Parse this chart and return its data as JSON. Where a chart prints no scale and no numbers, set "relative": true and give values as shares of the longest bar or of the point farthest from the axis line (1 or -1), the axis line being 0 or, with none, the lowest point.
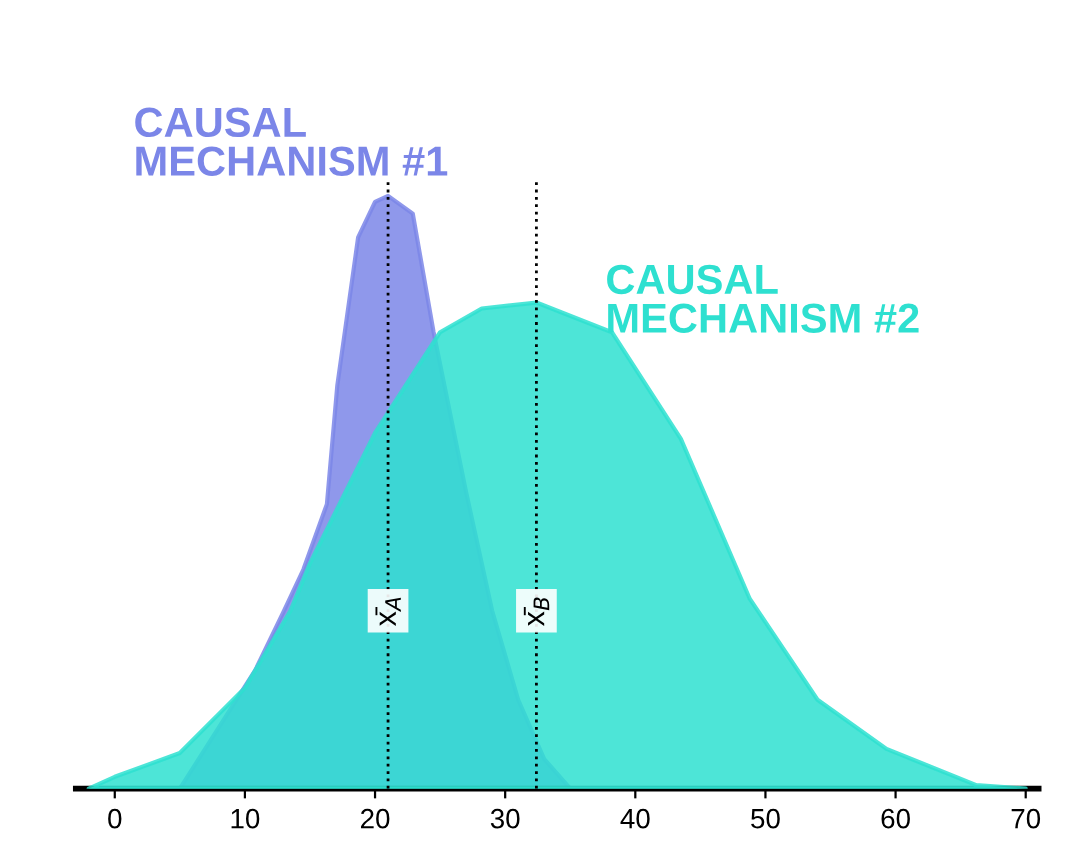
{
  "chart_data": {
    "type": "area",
    "relative": true,
    "xlim": [
      -3,
      71
    ],
    "xticks": [
      0,
      10,
      20,
      30,
      40,
      50,
      60,
      70
    ],
    "series": [
      {
        "name": "CAUSAL\nMECHANISM #1",
        "color": "#7b86e8",
        "x": [
          5,
          10.8,
          13,
          14.5,
          16.3,
          17.1,
          18.7,
          20,
          21,
          22.9,
          24.5,
          27,
          29,
          31,
          33,
          35
        ],
        "values": [
          0,
          0.2,
          0.3,
          0.37,
          0.48,
          0.68,
          0.93,
          0.99,
          1,
          0.97,
          0.77,
          0.5,
          0.3,
          0.15,
          0.05,
          0
        ]
      },
      {
        "name": "CAUSAL\nMECHANISM #2",
        "color": "#2ee0d0",
        "x": [
          -2,
          0,
          5,
          10,
          13.5,
          15,
          20,
          25,
          28.2,
          32.4,
          38.2,
          43.5,
          48.8,
          54,
          59.3,
          66.2,
          70
        ],
        "values": [
          0,
          0.02,
          0.06,
          0.17,
          0.3,
          0.38,
          0.6,
          0.77,
          0.81,
          0.82,
          0.77,
          0.59,
          0.32,
          0.15,
          0.067,
          0.006,
          0
        ]
      }
    ],
    "ref_lines": [
      {
        "axis": "x",
        "value": 21,
        "label": "x̄$_{A}$",
        "line_style": "dotted"
      },
      {
        "axis": "x",
        "value": 32.4,
        "label": "x̄$_{B}$",
        "line_style": "dotted"
      }
    ],
    "grid": false,
    "legend": false
  }
}
